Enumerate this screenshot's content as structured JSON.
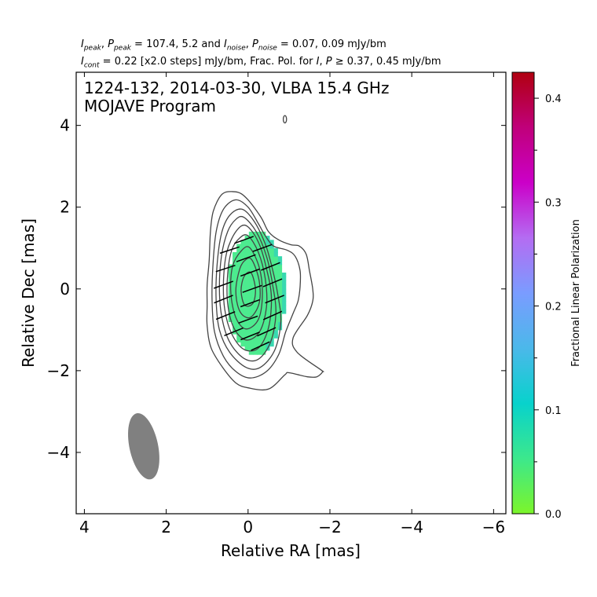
{
  "header": {
    "line1": "I_peak, P_peak = 107.4, 5.2 and I_noise, P_noise = 0.07, 0.09 mJy/bm",
    "line2": "I_cont = 0.22 [x2.0 steps] mJy/bm, Frac. Pol. for I, P ≥ 0.37, 0.45 mJy/bm",
    "line1_parts": {
      "i_peak_label": "I",
      "i_peak_sub": "peak",
      "p_peak_label": "P",
      "p_peak_sub": "peak",
      "values_peak": " = 107.4, 5.2 and ",
      "i_noise_label": "I",
      "i_noise_sub": "noise",
      "p_noise_label": "P",
      "p_noise_sub": "noise",
      "values_noise": " = 0.07, 0.09 mJy/bm"
    },
    "line2_parts": {
      "i_cont_label": "I",
      "i_cont_sub": "cont",
      "cont_text": " = 0.22 [x2.0 steps] mJy/bm, Frac. Pol. for ",
      "i_label": "I",
      "p_label": "P",
      "thresh_text": " ≥ 0.37, 0.45 mJy/bm"
    }
  },
  "colors": {
    "contour": "#444444",
    "polarization_fill": "#4deb8f",
    "polarization_edge": "#38d8b0",
    "evpa_stick": "#000000",
    "beam": "#808080",
    "colormap": [
      "#7cf52a",
      "#3ce88c",
      "#08d2cc",
      "#4bb8ea",
      "#7a9cff",
      "#b46cf2",
      "#cb00c8",
      "#c0007a",
      "#b00010"
    ]
  },
  "chart_data": {
    "type": "heatmap",
    "title": "1224-132, 2014-03-30, VLBA 15.4 GHz",
    "subtitle": "MOJAVE Program",
    "xlabel": "Relative RA [mas]",
    "ylabel": "Relative Dec [mas]",
    "xlim": [
      4.2,
      -6.3
    ],
    "ylim": [
      -5.5,
      5.3
    ],
    "x_inverted": true,
    "xticks": [
      4,
      2,
      0,
      -2,
      -4,
      -6
    ],
    "yticks": [
      4,
      2,
      0,
      -2,
      -4
    ],
    "xtick_labels": [
      "4",
      "2",
      "0",
      "−2",
      "−4",
      "−6"
    ],
    "ytick_labels": [
      "4",
      "2",
      "0",
      "−2",
      "−4"
    ],
    "grid": false,
    "contour_base_mJy_per_beam": 0.22,
    "contour_step_factor": 2.0,
    "contours": [
      [
        [
          0.4,
          2.38
        ],
        [
          0.1,
          2.28
        ],
        [
          -0.3,
          1.78
        ],
        [
          -0.5,
          1.4
        ],
        [
          -0.75,
          1.2
        ],
        [
          -1.05,
          1.08
        ],
        [
          -1.25,
          1.05
        ],
        [
          -1.42,
          0.85
        ],
        [
          -1.5,
          0.45
        ],
        [
          -1.58,
          0.0
        ],
        [
          -1.58,
          -0.3
        ],
        [
          -1.45,
          -0.65
        ],
        [
          -1.1,
          -1.2
        ],
        [
          -1.2,
          -1.55
        ],
        [
          -1.78,
          -1.98
        ],
        [
          -1.82,
          -2.03
        ],
        [
          -1.68,
          -2.15
        ],
        [
          -1.45,
          -2.15
        ],
        [
          -1.0,
          -2.05
        ],
        [
          -0.9,
          -2.1
        ],
        [
          -0.5,
          -2.45
        ],
        [
          0.0,
          -2.42
        ],
        [
          0.3,
          -2.3
        ],
        [
          0.6,
          -1.95
        ],
        [
          0.9,
          -1.45
        ],
        [
          1.0,
          -0.9
        ],
        [
          1.0,
          -0.4
        ],
        [
          1.0,
          0.1
        ],
        [
          0.95,
          0.7
        ],
        [
          0.92,
          1.4
        ],
        [
          0.85,
          1.9
        ],
        [
          0.65,
          2.3
        ]
      ],
      [
        [
          0.3,
          2.18
        ],
        [
          0.0,
          2.0
        ],
        [
          -0.25,
          1.6
        ],
        [
          -0.42,
          1.3
        ],
        [
          -0.62,
          1.05
        ],
        [
          -0.95,
          0.95
        ],
        [
          -1.15,
          0.8
        ],
        [
          -1.27,
          0.45
        ],
        [
          -1.27,
          0.05
        ],
        [
          -1.22,
          -0.3
        ],
        [
          -1.1,
          -0.6
        ],
        [
          -0.92,
          -1.05
        ],
        [
          -0.75,
          -1.6
        ],
        [
          -0.45,
          -2.02
        ],
        [
          -0.05,
          -2.18
        ],
        [
          0.3,
          -2.02
        ],
        [
          0.6,
          -1.65
        ],
        [
          0.82,
          -1.05
        ],
        [
          0.88,
          -0.3
        ],
        [
          0.86,
          0.55
        ],
        [
          0.78,
          1.4
        ],
        [
          0.6,
          1.95
        ]
      ],
      [
        [
          0.15,
          1.95
        ],
        [
          -0.15,
          1.65
        ],
        [
          -0.42,
          1.1
        ],
        [
          -0.58,
          0.55
        ],
        [
          -0.72,
          -0.1
        ],
        [
          -0.8,
          -0.8
        ],
        [
          -0.65,
          -1.5
        ],
        [
          -0.3,
          -1.92
        ],
        [
          0.05,
          -1.92
        ],
        [
          0.45,
          -1.55
        ],
        [
          0.7,
          -1.0
        ],
        [
          0.78,
          -0.3
        ],
        [
          0.76,
          0.55
        ],
        [
          0.65,
          1.35
        ],
        [
          0.45,
          1.8
        ]
      ],
      [
        [
          0.1,
          1.75
        ],
        [
          -0.2,
          1.4
        ],
        [
          -0.45,
          0.8
        ],
        [
          -0.6,
          0.1
        ],
        [
          -0.68,
          -0.6
        ],
        [
          -0.55,
          -1.3
        ],
        [
          -0.25,
          -1.72
        ],
        [
          0.1,
          -1.7
        ],
        [
          0.45,
          -1.3
        ],
        [
          0.64,
          -0.7
        ],
        [
          0.7,
          0.0
        ],
        [
          0.65,
          0.8
        ],
        [
          0.5,
          1.4
        ],
        [
          0.3,
          1.7
        ]
      ],
      [
        [
          0.05,
          1.55
        ],
        [
          -0.25,
          1.15
        ],
        [
          -0.45,
          0.5
        ],
        [
          -0.57,
          -0.2
        ],
        [
          -0.5,
          -0.95
        ],
        [
          -0.25,
          -1.45
        ],
        [
          0.1,
          -1.48
        ],
        [
          0.4,
          -1.1
        ],
        [
          0.57,
          -0.5
        ],
        [
          0.6,
          0.2
        ],
        [
          0.52,
          0.9
        ],
        [
          0.3,
          1.4
        ]
      ],
      [
        [
          0.0,
          1.3
        ],
        [
          -0.25,
          0.9
        ],
        [
          -0.42,
          0.25
        ],
        [
          -0.45,
          -0.45
        ],
        [
          -0.28,
          -1.05
        ],
        [
          0.05,
          -1.25
        ],
        [
          0.35,
          -0.95
        ],
        [
          0.5,
          -0.35
        ],
        [
          0.5,
          0.35
        ],
        [
          0.4,
          0.95
        ],
        [
          0.2,
          1.25
        ]
      ],
      [
        [
          -0.05,
          1.0
        ],
        [
          -0.28,
          0.5
        ],
        [
          -0.35,
          -0.15
        ],
        [
          -0.25,
          -0.75
        ],
        [
          0.05,
          -0.98
        ],
        [
          0.3,
          -0.7
        ],
        [
          0.42,
          -0.1
        ],
        [
          0.38,
          0.55
        ],
        [
          0.15,
          0.95
        ]
      ],
      [
        [
          -0.1,
          0.7
        ],
        [
          -0.27,
          0.2
        ],
        [
          -0.27,
          -0.35
        ],
        [
          -0.05,
          -0.7
        ],
        [
          0.2,
          -0.55
        ],
        [
          0.3,
          -0.05
        ],
        [
          0.2,
          0.5
        ],
        [
          0.05,
          0.72
        ]
      ],
      [
        [
          -0.07,
          0.4
        ],
        [
          -0.18,
          0.0
        ],
        [
          -0.12,
          -0.35
        ],
        [
          0.08,
          -0.4
        ],
        [
          0.17,
          -0.05
        ],
        [
          0.1,
          0.3
        ]
      ]
    ],
    "isolated_contour": {
      "center": [
        -0.9,
        4.15
      ],
      "rx": 0.04,
      "ry": 0.09
    },
    "polarization_region": {
      "center": [
        -0.1,
        -0.1
      ],
      "rx": 0.72,
      "ry": 1.5,
      "fractional_polarization": 0.05
    },
    "evpa_sticks": [
      {
        "x": 0.1,
        "y": 1.2,
        "angle_deg": 160
      },
      {
        "x": -0.35,
        "y": 1.0,
        "angle_deg": 160
      },
      {
        "x": 0.45,
        "y": 0.95,
        "angle_deg": 162
      },
      {
        "x": 0.05,
        "y": 0.75,
        "angle_deg": 160
      },
      {
        "x": -0.55,
        "y": 0.55,
        "angle_deg": 158
      },
      {
        "x": 0.55,
        "y": 0.5,
        "angle_deg": 162
      },
      {
        "x": -0.05,
        "y": 0.4,
        "angle_deg": 160
      },
      {
        "x": -0.6,
        "y": 0.15,
        "angle_deg": 158
      },
      {
        "x": 0.6,
        "y": 0.1,
        "angle_deg": 160
      },
      {
        "x": -0.1,
        "y": 0.0,
        "angle_deg": 160
      },
      {
        "x": -0.65,
        "y": -0.25,
        "angle_deg": 158
      },
      {
        "x": 0.6,
        "y": -0.25,
        "angle_deg": 158
      },
      {
        "x": -0.05,
        "y": -0.35,
        "angle_deg": 160
      },
      {
        "x": -0.6,
        "y": -0.65,
        "angle_deg": 156
      },
      {
        "x": 0.55,
        "y": -0.65,
        "angle_deg": 158
      },
      {
        "x": 0.0,
        "y": -0.75,
        "angle_deg": 160
      },
      {
        "x": -0.45,
        "y": -1.05,
        "angle_deg": 156
      },
      {
        "x": 0.35,
        "y": -1.05,
        "angle_deg": 158
      },
      {
        "x": -0.05,
        "y": -1.15,
        "angle_deg": 158
      },
      {
        "x": -0.3,
        "y": -1.4,
        "angle_deg": 155
      }
    ],
    "beam": {
      "center": [
        2.55,
        -3.85
      ],
      "major_mas": 1.65,
      "minor_mas": 0.7,
      "pa_deg": -12
    },
    "colorbar": {
      "label": "Fractional Linear Polarization",
      "range": [
        0.0,
        0.425
      ],
      "ticks": [
        0.0,
        0.1,
        0.2,
        0.3,
        0.4
      ],
      "tick_labels": [
        "0.0",
        "0.1",
        "0.2",
        "0.3",
        "0.4"
      ],
      "minor_ticks": [
        0.05,
        0.15,
        0.25,
        0.35
      ]
    }
  }
}
